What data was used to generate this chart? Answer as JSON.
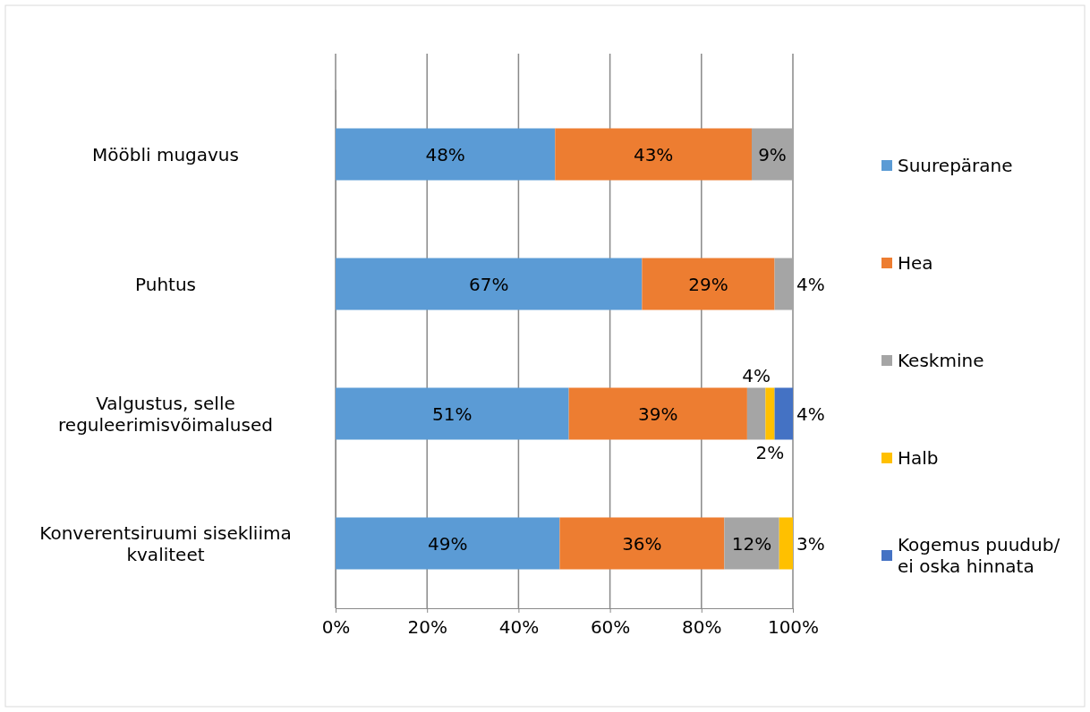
{
  "chart_data": {
    "type": "bar",
    "orientation": "horizontal",
    "stacked": true,
    "categories": [
      "Mööbli mugavus",
      "Puhtus",
      "Valgustus, selle reguleerimisvõimalused",
      "Konverentsiruumi sisekliima kvaliteet"
    ],
    "series": [
      {
        "name": "Suurepärane",
        "color": "#5b9bd5",
        "values": [
          48,
          67,
          51,
          49
        ],
        "value_labels": [
          "48%",
          "67%",
          "51%",
          "49%"
        ]
      },
      {
        "name": "Hea",
        "color": "#ed7d31",
        "values": [
          43,
          29,
          39,
          36
        ],
        "value_labels": [
          "43%",
          "29%",
          "39%",
          "36%"
        ]
      },
      {
        "name": "Keskmine",
        "color": "#a5a5a5",
        "values": [
          9,
          4,
          4,
          12
        ],
        "value_labels": [
          "9%",
          "4%",
          "4%",
          "12%"
        ]
      },
      {
        "name": "Halb",
        "color": "#ffc000",
        "values": [
          null,
          null,
          2,
          3
        ],
        "value_labels": [
          null,
          null,
          "2%",
          "3%"
        ]
      },
      {
        "name": "Kogemus puudub/ ei oska hinnata",
        "color": "#4472c4",
        "values": [
          null,
          null,
          4,
          null
        ],
        "value_labels": [
          null,
          null,
          "4%",
          null
        ]
      }
    ],
    "xlim": [
      0,
      100
    ],
    "xticks": [
      {
        "value": 0,
        "label": "0%"
      },
      {
        "value": 20,
        "label": "20%"
      },
      {
        "value": 40,
        "label": "40%"
      },
      {
        "value": 60,
        "label": "60%"
      },
      {
        "value": 80,
        "label": "80%"
      },
      {
        "value": 100,
        "label": "100%"
      }
    ],
    "grid": "x",
    "legend": "right"
  }
}
